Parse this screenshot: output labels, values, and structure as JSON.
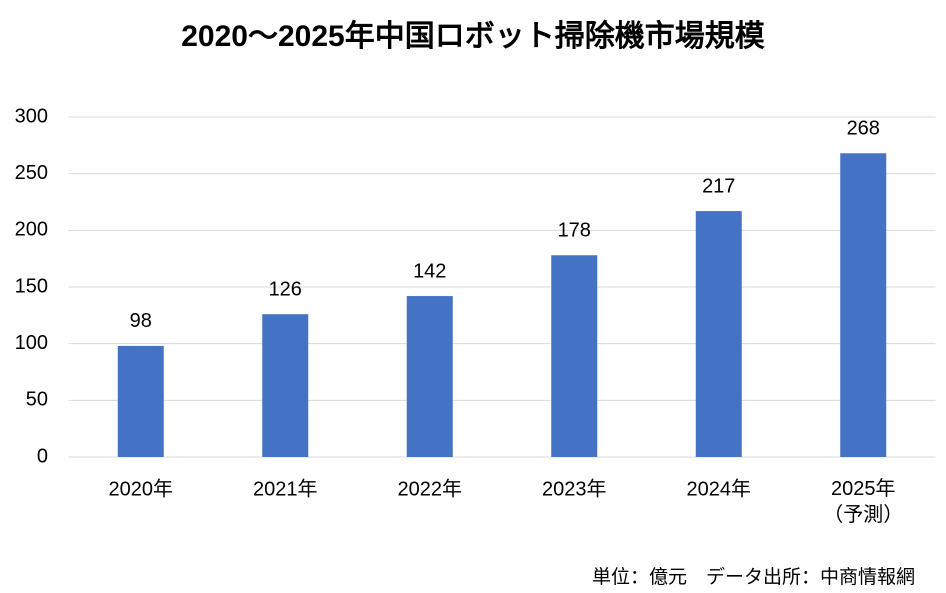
{
  "chart_data": {
    "type": "bar",
    "title": "2020～2025年中国ロボット掃除機市場規模",
    "categories": [
      "2020年",
      "2021年",
      "2022年",
      "2023年",
      "2024年",
      "2025年\n（予測）"
    ],
    "values": [
      98,
      126,
      142,
      178,
      217,
      268
    ],
    "color": "#4472c4",
    "ylim": [
      0,
      300
    ],
    "yticks": [
      0,
      50,
      100,
      150,
      200,
      250,
      300
    ],
    "grid": true,
    "data_labels": true,
    "note": "単位：億元　データ出所：中商情報網"
  }
}
